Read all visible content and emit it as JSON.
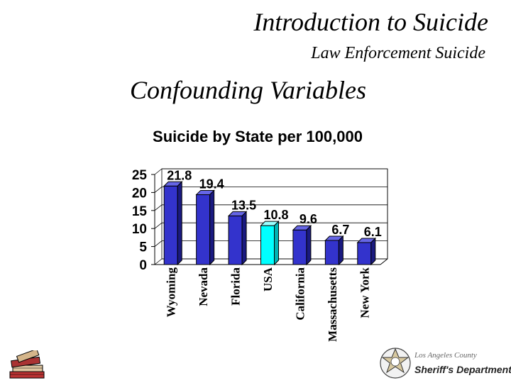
{
  "header": {
    "title": "Introduction to Suicide",
    "subtitle": "Law Enforcement Suicide"
  },
  "section": {
    "heading": "Confounding Variables"
  },
  "logos": {
    "books": "books-icon",
    "sheriff_county": "Los Angeles County",
    "sheriff_department": "Sheriff's Department"
  },
  "chart_data": {
    "type": "bar",
    "title": "Suicide by State per 100,000",
    "categories": [
      "Wyoming",
      "Nevada",
      "Florida",
      "USA",
      "California",
      "Massachusetts",
      "New York"
    ],
    "values": [
      21.8,
      19.4,
      13.5,
      10.8,
      9.6,
      6.7,
      6.1
    ],
    "data_labels": [
      "21.8",
      "19.4",
      "13.5",
      "10.8",
      "9.6",
      "6.7",
      "6.1"
    ],
    "ylim": [
      0,
      25
    ],
    "yticks": [
      0,
      5,
      10,
      15,
      20,
      25
    ],
    "grid": true,
    "bar_color": "#3333cc",
    "highlight_color": "#00ffff",
    "highlight_category": "USA"
  }
}
